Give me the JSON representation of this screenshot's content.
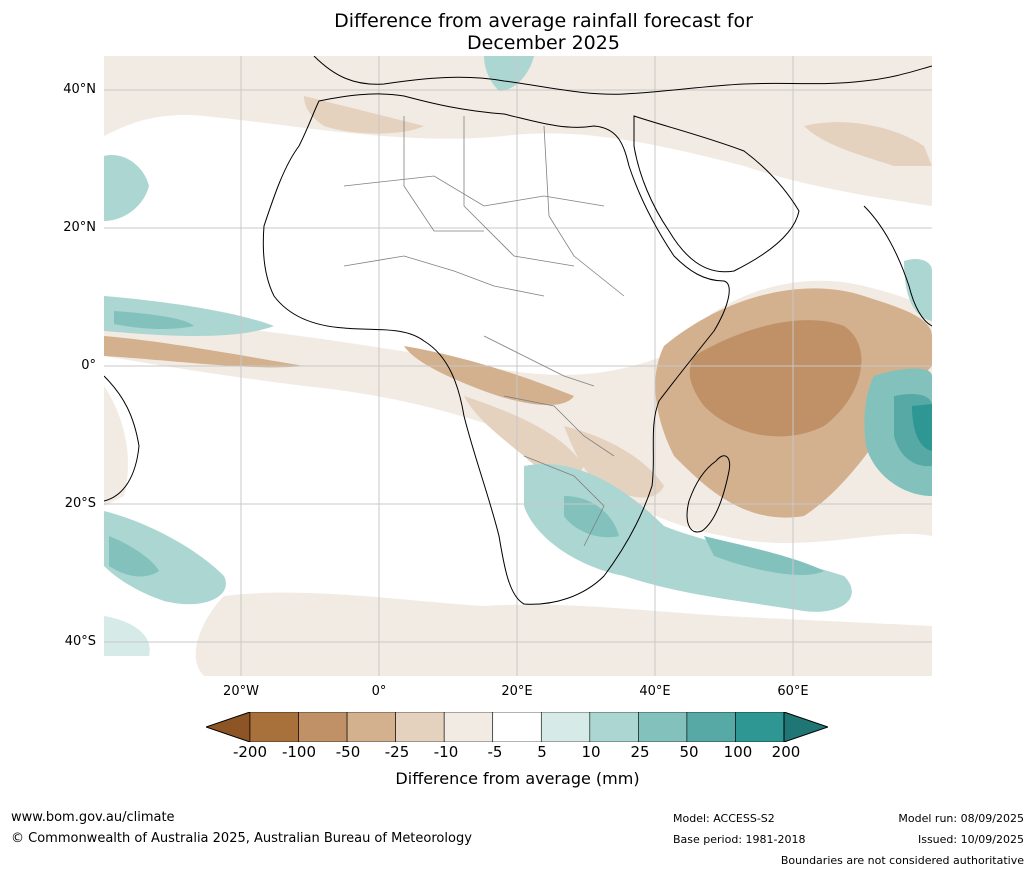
{
  "title": {
    "line1": "Difference from average rainfall forecast for",
    "line2": "December 2025"
  },
  "map": {
    "lat_labels": [
      "40°N",
      "20°N",
      "0°",
      "20°S",
      "40°S"
    ],
    "lon_labels": [
      "20°W",
      "0°",
      "20°E",
      "40°E",
      "60°E"
    ]
  },
  "legend": {
    "title": "Difference from average (mm)",
    "ticks": [
      "-200",
      "-100",
      "-50",
      "-25",
      "-10",
      "-5",
      "5",
      "10",
      "25",
      "50",
      "100",
      "200"
    ],
    "colors": [
      "#8d5526",
      "#a8713c",
      "#c09166",
      "#d3b08e",
      "#e4d1be",
      "#f2ebe3",
      "#ffffff",
      "#d6ebe8",
      "#acd6d2",
      "#83c1bd",
      "#57a9a6",
      "#2e9793",
      "#1f7674"
    ]
  },
  "footer": {
    "url": "www.bom.gov.au/climate",
    "copyright": "© Commonwealth of Australia 2025, Australian Bureau of Meteorology",
    "model": "Model: ACCESS-S2",
    "base_period": "Base period: 1981-2018",
    "model_run": "Model run: 08/09/2025",
    "issued": "Issued: 10/09/2025",
    "disclaimer": "Boundaries are not considered authoritative"
  }
}
